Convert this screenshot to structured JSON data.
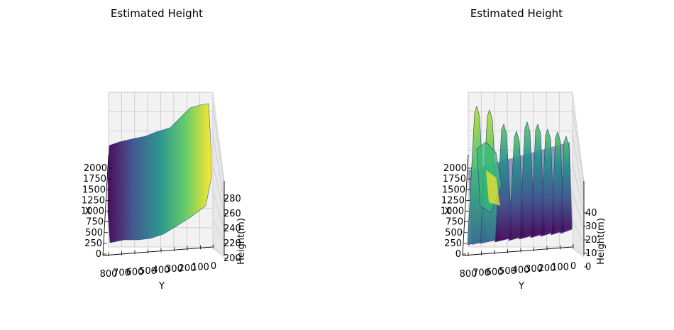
{
  "chart_data": [
    {
      "type": "surface",
      "title": "Estimated Height",
      "xlabel": "X",
      "ylabel": "Y",
      "zlabel": "Height(m)",
      "x_ticks": [
        "0",
        "250",
        "500",
        "750",
        "1000",
        "1250",
        "1500",
        "1750",
        "2000"
      ],
      "y_ticks": [
        "800",
        "700",
        "600",
        "500",
        "400",
        "300",
        "200",
        "100",
        "0"
      ],
      "z_ticks": [
        "200",
        "220",
        "240",
        "260",
        "280"
      ],
      "zlim": [
        200,
        290
      ],
      "colormap": "viridis",
      "grid": true
    },
    {
      "type": "surface",
      "title": "Estimated Height",
      "xlabel": "X",
      "ylabel": "Y",
      "zlabel": "Height(m)",
      "x_ticks": [
        "0",
        "250",
        "500",
        "750",
        "1000",
        "1250",
        "1500",
        "1750",
        "2000"
      ],
      "y_ticks": [
        "800",
        "700",
        "600",
        "500",
        "400",
        "300",
        "200",
        "100",
        "0"
      ],
      "z_ticks": [
        "0",
        "10",
        "20",
        "30",
        "40"
      ],
      "zlim": [
        0,
        50
      ],
      "colormap": "viridis",
      "grid": true
    }
  ]
}
